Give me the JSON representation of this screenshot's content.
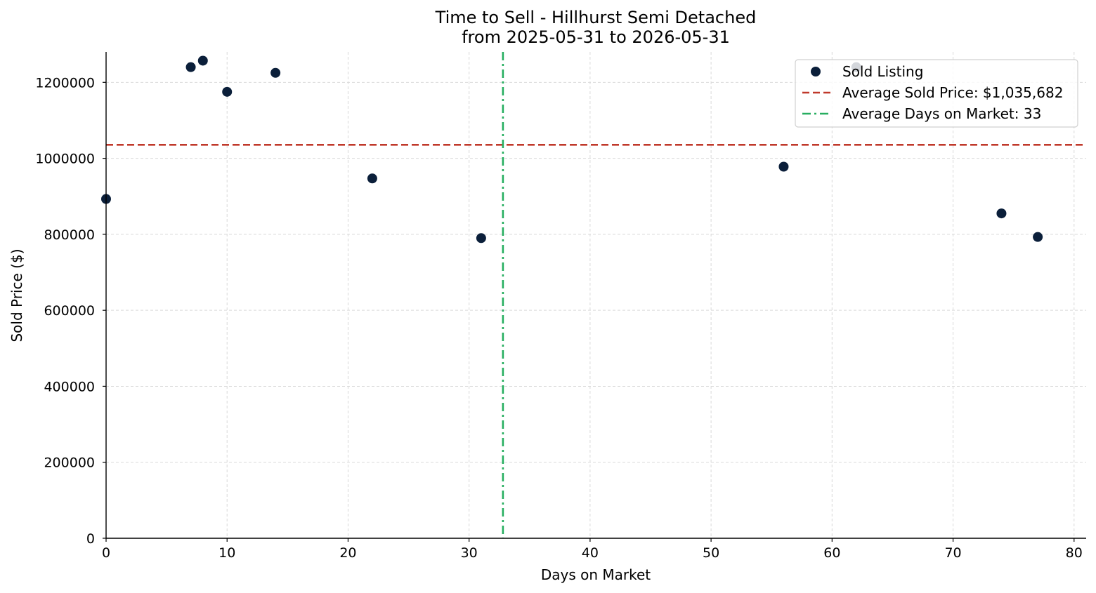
{
  "chart_data": {
    "type": "scatter",
    "title": "Time to Sell - Hillhurst Semi Detached",
    "subtitle": "from 2025-05-31 to 2026-05-31",
    "xlabel": "Days on Market",
    "ylabel": "Sold Price ($)",
    "xlim": [
      0,
      81
    ],
    "ylim": [
      0,
      1280000
    ],
    "xticks": [
      0,
      10,
      20,
      30,
      40,
      50,
      60,
      70,
      80
    ],
    "yticks": [
      0,
      200000,
      400000,
      600000,
      800000,
      1000000,
      1200000
    ],
    "grid": true,
    "legend_position": "top-right",
    "series": [
      {
        "name": "Sold Listing",
        "color": "#0b1f3a",
        "x": [
          0,
          7,
          8,
          10,
          14,
          22,
          31,
          56,
          62,
          74,
          77
        ],
        "y": [
          893000,
          1240000,
          1257000,
          1175000,
          1225000,
          947000,
          790000,
          978000,
          1240000,
          855000,
          793000
        ]
      }
    ],
    "reference_lines": [
      {
        "name": "Average Sold Price: $1,035,682",
        "orientation": "horizontal",
        "value": 1035682,
        "style": "dashed",
        "color": "#c0392b"
      },
      {
        "name": "Average Days on Market: 33",
        "orientation": "vertical",
        "value": 32.8,
        "style": "dashdot",
        "color": "#27ae60"
      }
    ]
  }
}
